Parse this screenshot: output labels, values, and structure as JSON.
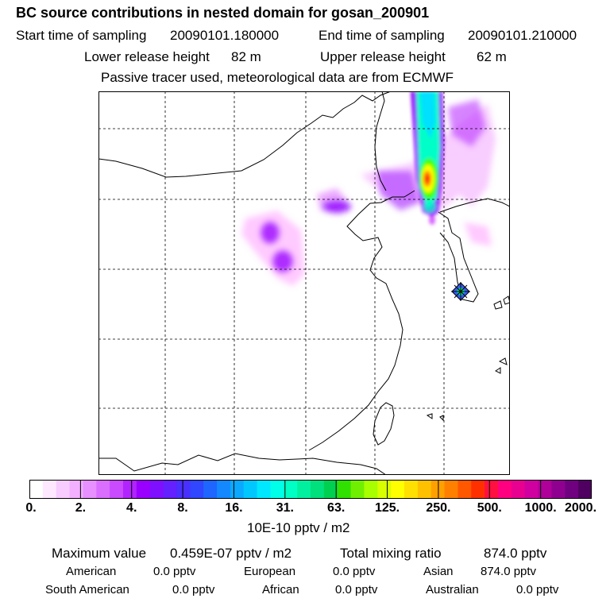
{
  "header": {
    "title": "BC  source contributions in nested domain for gosan_200901",
    "start_label": "Start time of sampling",
    "start_value": "20090101.180000",
    "end_label": "End time of sampling",
    "end_value": "20090101.210000",
    "lower_label": "Lower release height",
    "lower_value": "82 m",
    "upper_label": "Upper release height",
    "upper_value": "62 m",
    "note": "Passive tracer used, meteorological data are from ECMWF"
  },
  "map": {
    "receptor_icon": "star-marker-icon",
    "plume_colors": [
      "#ff66ff",
      "#9900ff",
      "#00ffcc",
      "#33ff00",
      "#ffff00",
      "#ff3300"
    ]
  },
  "colorbar": {
    "colors": [
      "#ffffff",
      "#fde8ff",
      "#f8ccff",
      "#f2b0ff",
      "#e890ff",
      "#d96eff",
      "#c94aff",
      "#b224ff",
      "#9a00ff",
      "#7f10ff",
      "#6420ff",
      "#4a30ff",
      "#3046ff",
      "#1e66ff",
      "#1488ff",
      "#0aa8ff",
      "#00c8ff",
      "#00e8ff",
      "#00ffe8",
      "#00ffc4",
      "#00f0a0",
      "#00e07c",
      "#00d050",
      "#30e000",
      "#70f000",
      "#a8ff00",
      "#d8ff00",
      "#ffff00",
      "#ffe000",
      "#ffc000",
      "#ffa000",
      "#ff8000",
      "#ff5800",
      "#ff3000",
      "#ff1040",
      "#ff0080",
      "#e80090",
      "#d000a0",
      "#b0009a",
      "#900090",
      "#700080",
      "#500060"
    ],
    "tick_labels": [
      "0.",
      "2.",
      "4.",
      "8.",
      "16.",
      "31.",
      "63.",
      "125.",
      "250.",
      "500.",
      "1000.",
      "2000."
    ],
    "unit": "10E-10 pptv / m2"
  },
  "summary": {
    "max_label": "Maximum value",
    "max_value": "0.459E-07 pptv / m2",
    "total_label": "Total mixing ratio",
    "total_value": "874.0 pptv",
    "regions": [
      {
        "name": "American",
        "value": "0.0 pptv"
      },
      {
        "name": "European",
        "value": "0.0 pptv"
      },
      {
        "name": "Asian",
        "value": "874.0 pptv"
      },
      {
        "name": "South American",
        "value": "0.0 pptv"
      },
      {
        "name": "African",
        "value": "0.0 pptv"
      },
      {
        "name": "Australian",
        "value": "0.0 pptv"
      }
    ]
  }
}
